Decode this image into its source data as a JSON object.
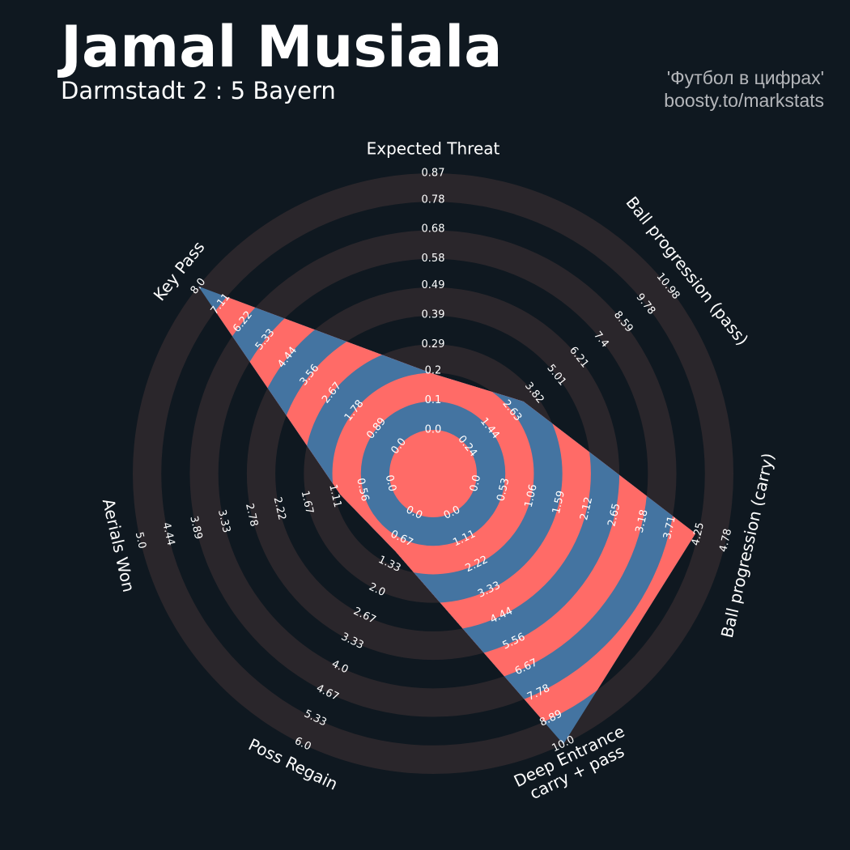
{
  "chart_data": {
    "type": "radar",
    "title": "Jamal Musiala",
    "subtitle": "Darmstadt 2 : 5 Bayern",
    "credits": [
      "'Футбол в цифрах'",
      "boosty.to/markstats"
    ],
    "background": "#0f1820",
    "ring_color": "#2a262b",
    "axes": [
      {
        "name": [
          "Expected Threat"
        ],
        "lim": [
          0.0,
          0.87
        ],
        "ticks": [
          {
            "value": 0.0,
            "label": "0.0"
          },
          0.1,
          0.2,
          0.29,
          0.39,
          0.49,
          0.58,
          0.68,
          0.78,
          0.87
        ]
      },
      {
        "name": [
          "Ball progression (pass)"
        ],
        "lim": [
          0.24,
          10.98
        ],
        "ticks": [
          0.24,
          1.44,
          2.63,
          3.82,
          5.01,
          6.21,
          7.4,
          8.59,
          9.78,
          10.98
        ]
      },
      {
        "name": [
          "Ball progression (carry)"
        ],
        "lim": [
          0.0,
          4.78
        ],
        "ticks": [
          {
            "value": 0.0,
            "label": "0.0"
          },
          0.53,
          1.06,
          1.59,
          2.12,
          2.65,
          3.18,
          3.71,
          4.25,
          4.78
        ]
      },
      {
        "name": [
          "Deep Entrance",
          "carry + pass"
        ],
        "lim": [
          0.0,
          10.0
        ],
        "ticks": [
          {
            "value": 0.0,
            "label": "0.0"
          },
          1.11,
          2.22,
          3.33,
          4.44,
          5.56,
          6.67,
          7.78,
          8.89,
          {
            "value": 10.0,
            "label": "10.0"
          }
        ]
      },
      {
        "name": [
          "Poss Regain"
        ],
        "lim": [
          0.0,
          6.0
        ],
        "ticks": [
          {
            "value": 0.0,
            "label": "0.0"
          },
          0.67,
          1.33,
          {
            "value": 2.0,
            "label": "2.0"
          },
          2.67,
          3.33,
          {
            "value": 4.0,
            "label": "4.0"
          },
          4.67,
          5.33,
          {
            "value": 6.0,
            "label": "6.0"
          }
        ]
      },
      {
        "name": [
          "Aerials Won"
        ],
        "lim": [
          0.0,
          5.0
        ],
        "ticks": [
          {
            "value": 0.0,
            "label": "0.0"
          },
          0.56,
          1.11,
          1.67,
          2.22,
          2.78,
          3.33,
          3.89,
          4.44,
          {
            "value": 5.0,
            "label": "5.0"
          }
        ]
      },
      {
        "name": [
          "Key Pass"
        ],
        "lim": [
          0.0,
          8.0
        ],
        "ticks": [
          {
            "value": 0.0,
            "label": "0.0"
          },
          0.89,
          1.78,
          2.67,
          3.56,
          4.44,
          5.33,
          6.22,
          7.11,
          {
            "value": 8.0,
            "label": "8.0"
          }
        ]
      }
    ],
    "series": [
      {
        "values": [
          0.19,
          3.25,
          4.2,
          10.0,
          1.0,
          1.0,
          8.0
        ],
        "color": "#4474a1",
        "alt_color": "#ff6b67"
      }
    ]
  }
}
